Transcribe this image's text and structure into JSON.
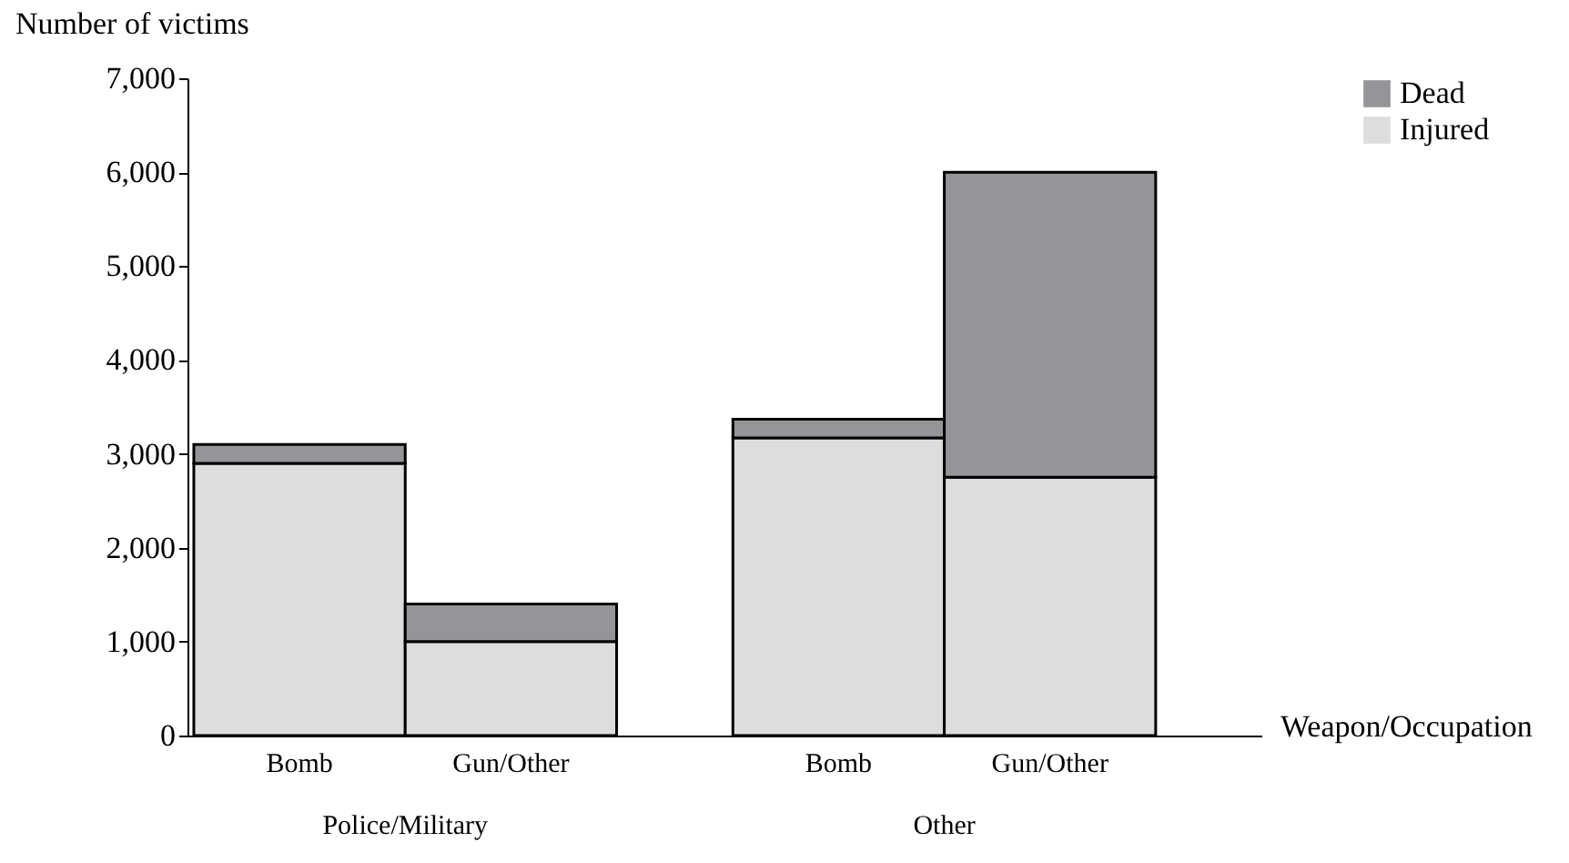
{
  "chart_data": {
    "type": "bar",
    "stacked": true,
    "ylabel": "Number of victims",
    "xlabel": "Weapon/Occupation",
    "categories": [
      "Bomb",
      "Gun/Other",
      "Bomb",
      "Gun/Other"
    ],
    "series": [
      {
        "name": "Injured",
        "color": "#dcdddf",
        "values": [
          2900,
          1000,
          3170,
          2750
        ]
      },
      {
        "name": "Dead",
        "color": "#939598",
        "values": [
          200,
          400,
          200,
          3250
        ]
      }
    ],
    "annotations": [
      "Police/Military",
      "Other"
    ],
    "ylim": [
      0,
      7000
    ],
    "yticks": [
      0,
      {
        "value": 1000,
        "label": "1,000"
      },
      {
        "value": 2000,
        "label": "2,000"
      },
      {
        "value": 3000,
        "label": "3,000"
      },
      {
        "value": 4000,
        "label": "4,000"
      },
      {
        "value": 5000,
        "label": "5,000"
      },
      {
        "value": 6000,
        "label": "6,000"
      },
      {
        "value": 7000,
        "label": "7,000"
      }
    ],
    "grid": false,
    "legend": "top right"
  }
}
